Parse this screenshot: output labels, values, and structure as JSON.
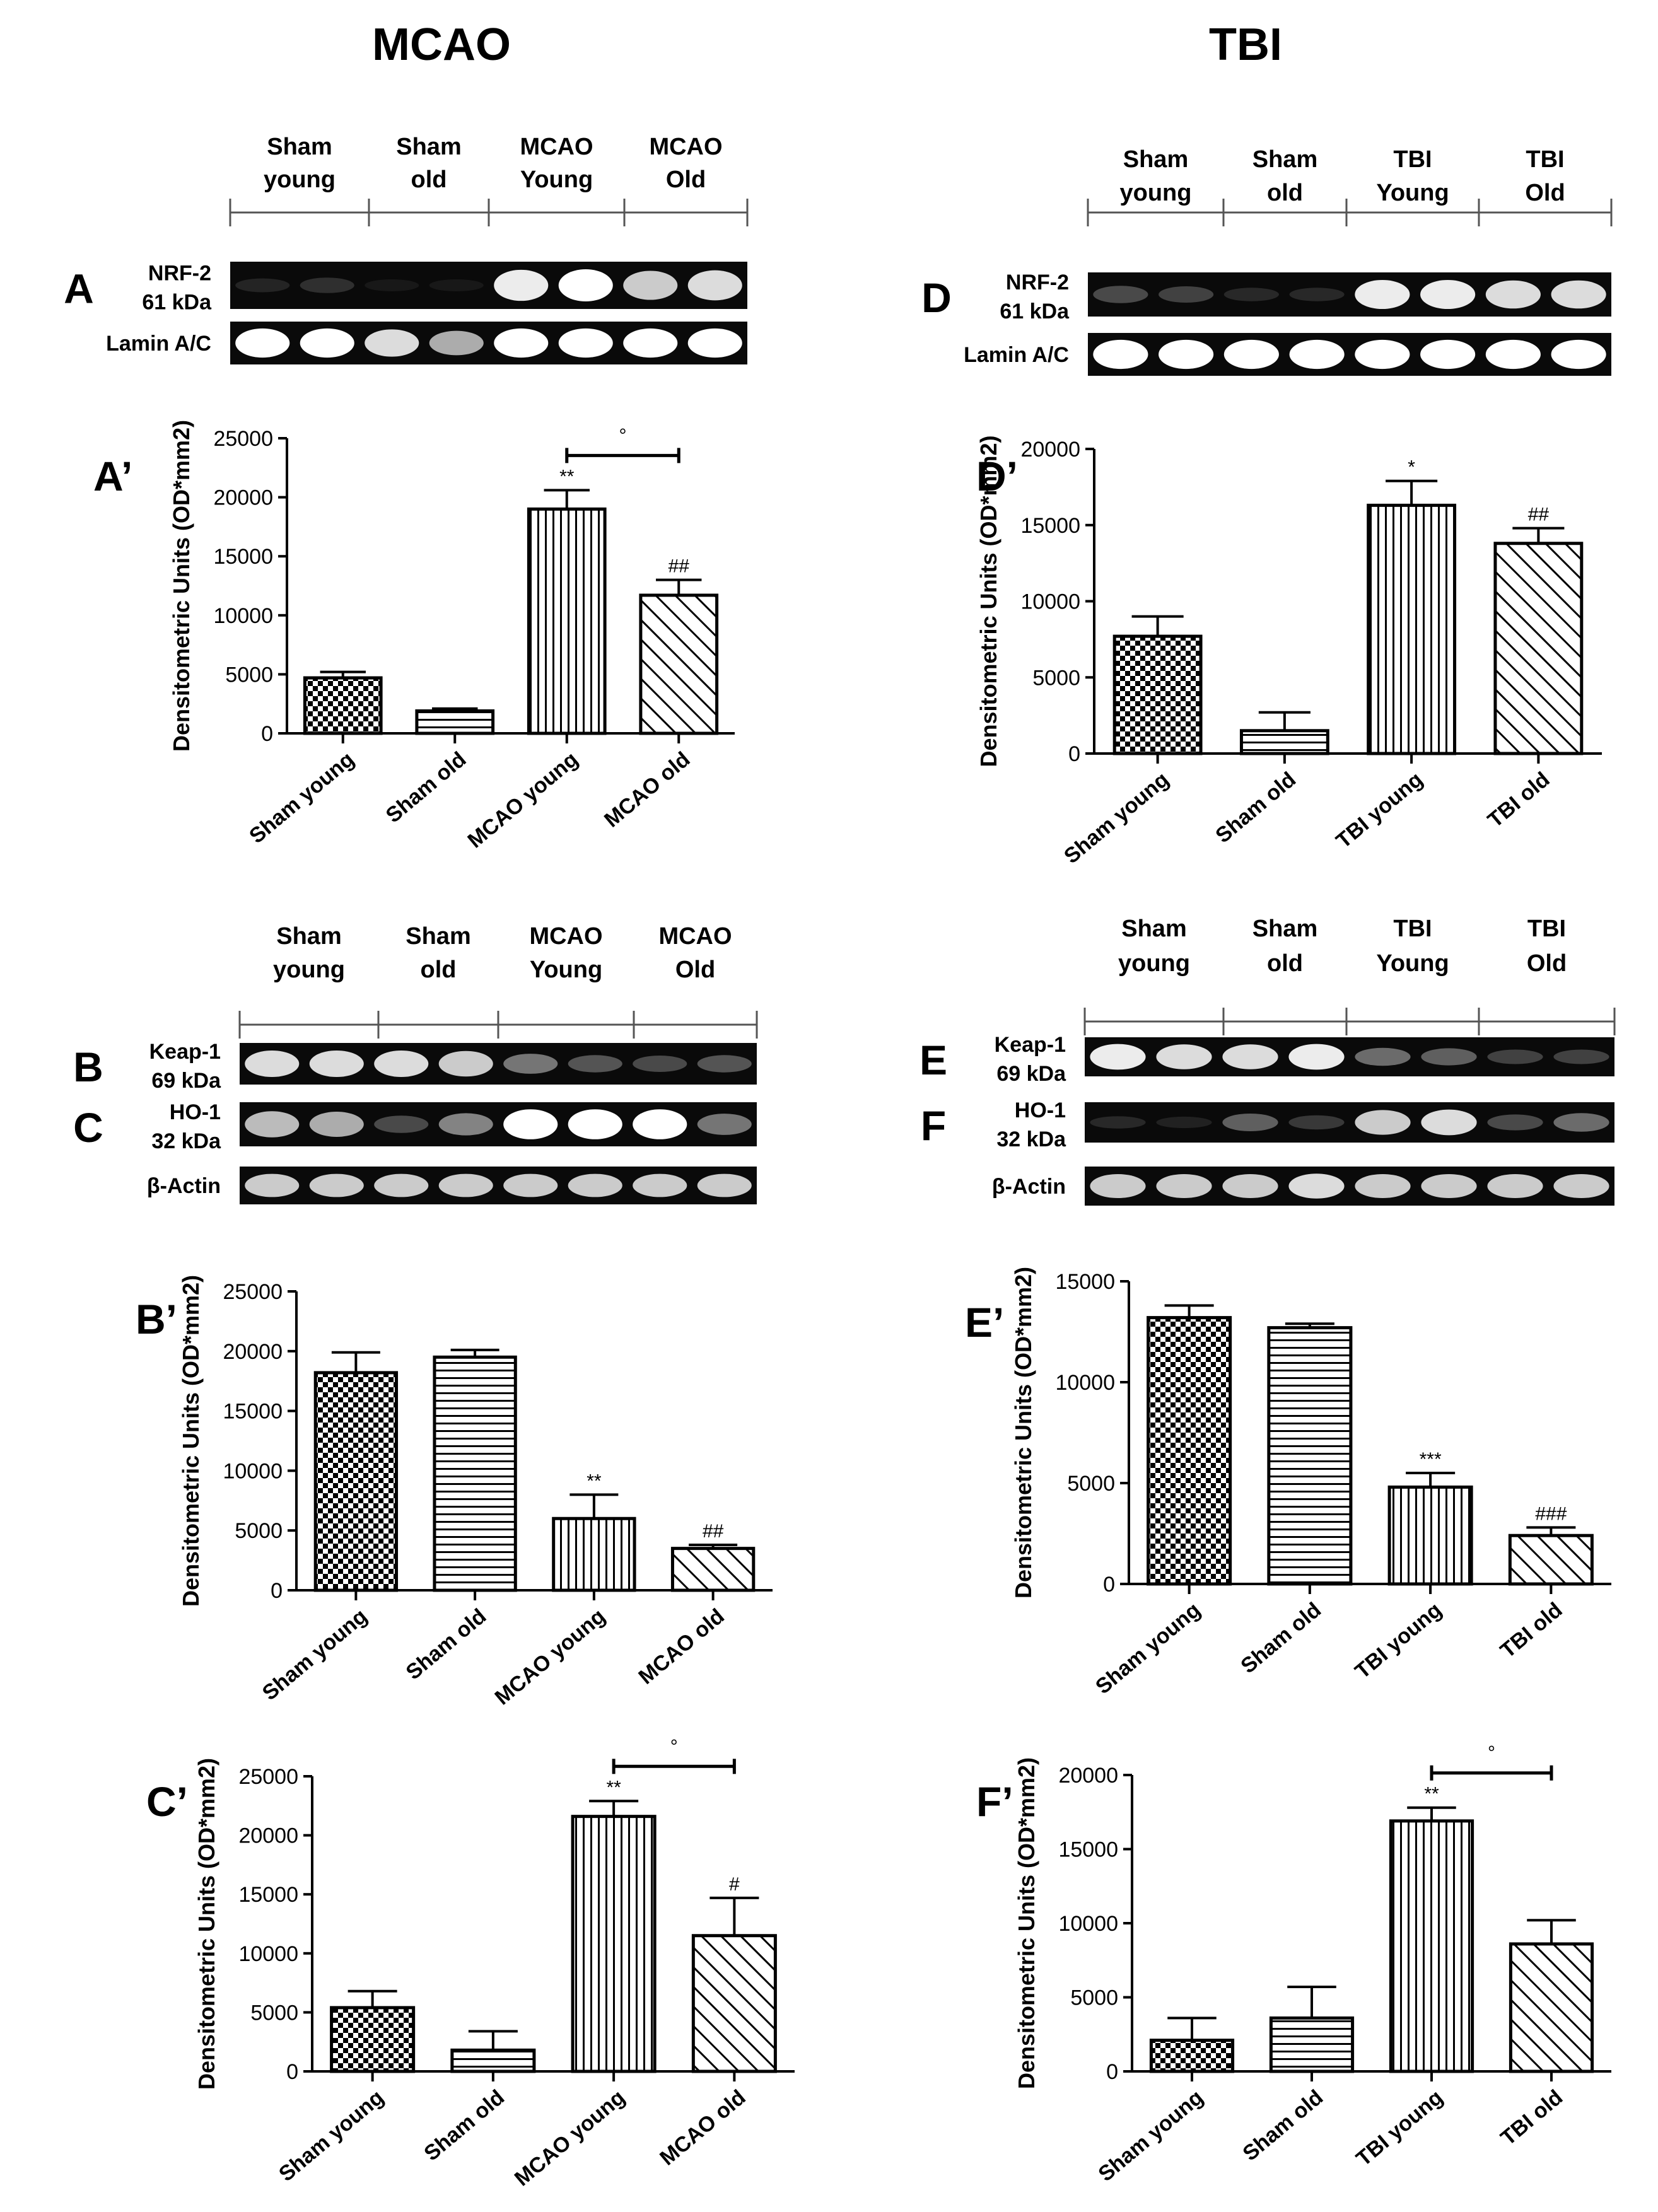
{
  "columns": [
    {
      "title": "MCAO"
    },
    {
      "title": "TBI"
    }
  ],
  "blots": [
    {
      "lane_groups": [
        {
          "line1": "Sham",
          "line2": "young"
        },
        {
          "line1": "Sham",
          "line2": "old"
        },
        {
          "line1": "MCAO",
          "line2": "Young"
        },
        {
          "line1": "MCAO",
          "line2": "Old"
        }
      ],
      "bands": [
        {
          "panel_letter": "A",
          "label_line1": "NRF-2",
          "label_line2": "61 kDa",
          "intensity": [
            0.12,
            0.2,
            0.03,
            0.03,
            0.95,
            1.0,
            0.85,
            0.9
          ]
        },
        {
          "panel_letter": "",
          "label_line1": "Lamin A/C",
          "label_line2": "",
          "intensity": [
            1.0,
            1.0,
            0.9,
            0.75,
            1.0,
            1.0,
            1.0,
            1.0
          ]
        }
      ]
    },
    {
      "lane_groups": [
        {
          "line1": "Sham",
          "line2": "young"
        },
        {
          "line1": "Sham",
          "line2": "old"
        },
        {
          "line1": "TBI",
          "line2": "Young"
        },
        {
          "line1": "TBI",
          "line2": "Old"
        }
      ],
      "bands": [
        {
          "panel_letter": "D",
          "label_line1": "NRF-2",
          "label_line2": "61 kDa",
          "intensity": [
            0.35,
            0.3,
            0.15,
            0.15,
            0.95,
            0.95,
            0.9,
            0.9
          ]
        },
        {
          "panel_letter": "",
          "label_line1": "Lamin A/C",
          "label_line2": "",
          "intensity": [
            1.0,
            1.0,
            1.0,
            1.0,
            1.0,
            1.0,
            1.0,
            1.0
          ]
        }
      ]
    },
    {
      "lane_groups": [
        {
          "line1": "Sham",
          "line2": "young"
        },
        {
          "line1": "Sham",
          "line2": "old"
        },
        {
          "line1": "MCAO",
          "line2": "Young"
        },
        {
          "line1": "MCAO",
          "line2": "Old"
        }
      ],
      "bands": [
        {
          "panel_letter": "B",
          "label_line1": "Keap-1",
          "label_line2": "69 kDa",
          "intensity": [
            0.9,
            0.9,
            0.9,
            0.85,
            0.55,
            0.4,
            0.35,
            0.4
          ]
        },
        {
          "panel_letter": "C",
          "label_line1": "HO-1",
          "label_line2": "32 kDa",
          "intensity": [
            0.8,
            0.75,
            0.35,
            0.6,
            1.0,
            1.0,
            1.0,
            0.55
          ]
        },
        {
          "panel_letter": "",
          "label_line1": "β-Actin",
          "label_line2": "",
          "intensity": [
            0.85,
            0.85,
            0.85,
            0.85,
            0.85,
            0.85,
            0.85,
            0.85
          ]
        }
      ]
    },
    {
      "lane_groups": [
        {
          "line1": "Sham",
          "line2": "young"
        },
        {
          "line1": "Sham",
          "line2": "old"
        },
        {
          "line1": "TBI",
          "line2": "Young"
        },
        {
          "line1": "TBI",
          "line2": "Old"
        }
      ],
      "bands": [
        {
          "panel_letter": "E",
          "label_line1": "Keap-1",
          "label_line2": "69 kDa",
          "intensity": [
            0.95,
            0.9,
            0.9,
            0.95,
            0.5,
            0.45,
            0.3,
            0.3
          ]
        },
        {
          "panel_letter": "F",
          "label_line1": "HO-1",
          "label_line2": "32 kDa",
          "intensity": [
            0.15,
            0.1,
            0.45,
            0.25,
            0.85,
            0.9,
            0.35,
            0.5
          ]
        },
        {
          "panel_letter": "",
          "label_line1": "β-Actin",
          "label_line2": "",
          "intensity": [
            0.85,
            0.85,
            0.85,
            0.9,
            0.85,
            0.85,
            0.85,
            0.85
          ]
        }
      ]
    }
  ],
  "chart_data": [
    {
      "type": "bar",
      "panel": "A’",
      "categories": [
        "Sham young",
        "Sham old",
        "MCAO young",
        "MCAO old"
      ],
      "values": [
        4700,
        1900,
        19000,
        11700
      ],
      "errors": [
        500,
        200,
        1600,
        1300
      ],
      "patterns": [
        "checker",
        "hlines",
        "vlines",
        "diag"
      ],
      "annotations": [
        "",
        "",
        "**",
        "##"
      ],
      "bracket": {
        "from": 2,
        "to": 3,
        "label": "°"
      },
      "ylabel": "Densitometric Units (OD*mm2)",
      "ylim": [
        0,
        25000
      ],
      "yticks": [
        0,
        5000,
        10000,
        15000,
        20000,
        25000
      ]
    },
    {
      "type": "bar",
      "panel": "D’",
      "categories": [
        "Sham young",
        "Sham old",
        "TBI young",
        "TBI old"
      ],
      "values": [
        7700,
        1500,
        16300,
        13800
      ],
      "errors": [
        1300,
        1200,
        1600,
        1000
      ],
      "patterns": [
        "checker",
        "hlines",
        "vlines",
        "diag"
      ],
      "annotations": [
        "",
        "",
        "*",
        "##"
      ],
      "bracket": null,
      "ylabel": "Densitometric Units (OD*mm2)",
      "ylim": [
        0,
        20000
      ],
      "yticks": [
        0,
        5000,
        10000,
        15000,
        20000
      ]
    },
    {
      "type": "bar",
      "panel": "B’",
      "categories": [
        "Sham young",
        "Sham old",
        "MCAO young",
        "MCAO old"
      ],
      "values": [
        18200,
        19500,
        6000,
        3500
      ],
      "errors": [
        1700,
        600,
        2000,
        300
      ],
      "patterns": [
        "checker",
        "hlines",
        "vlines",
        "diag"
      ],
      "annotations": [
        "",
        "",
        "**",
        "##"
      ],
      "bracket": null,
      "ylabel": "Densitometric Units (OD*mm2)",
      "ylim": [
        0,
        25000
      ],
      "yticks": [
        0,
        5000,
        10000,
        15000,
        20000,
        25000
      ]
    },
    {
      "type": "bar",
      "panel": "E’",
      "categories": [
        "Sham young",
        "Sham old",
        "TBI young",
        "TBI old"
      ],
      "values": [
        13200,
        12700,
        4800,
        2400
      ],
      "errors": [
        600,
        200,
        700,
        400
      ],
      "patterns": [
        "checker",
        "hlines",
        "vlines",
        "diag"
      ],
      "annotations": [
        "",
        "",
        "***",
        "###"
      ],
      "bracket": null,
      "ylabel": "Densitometric Units (OD*mm2)",
      "ylim": [
        0,
        15000
      ],
      "yticks": [
        0,
        5000,
        10000,
        15000
      ]
    },
    {
      "type": "bar",
      "panel": "C’",
      "categories": [
        "Sham young",
        "Sham old",
        "MCAO young",
        "MCAO old"
      ],
      "values": [
        5400,
        1800,
        21600,
        11500
      ],
      "errors": [
        1400,
        1600,
        1300,
        3200
      ],
      "patterns": [
        "checker",
        "hlines",
        "vlines",
        "diag"
      ],
      "annotations": [
        "",
        "",
        "**",
        "#"
      ],
      "bracket": {
        "from": 2,
        "to": 3,
        "label": "°"
      },
      "ylabel": "Densitometric Units (OD*mm2)",
      "ylim": [
        0,
        25000
      ],
      "yticks": [
        0,
        5000,
        10000,
        15000,
        20000,
        25000
      ]
    },
    {
      "type": "bar",
      "panel": "F’",
      "categories": [
        "Sham young",
        "Sham old",
        "TBI young",
        "TBI old"
      ],
      "values": [
        2100,
        3600,
        16900,
        8600
      ],
      "errors": [
        1500,
        2100,
        900,
        1600
      ],
      "patterns": [
        "checker",
        "hlines",
        "vlines",
        "diag"
      ],
      "annotations": [
        "",
        "",
        "**",
        ""
      ],
      "bracket": {
        "from": 2,
        "to": 3,
        "label": "°"
      },
      "ylabel": "Densitometric Units (OD*mm2)",
      "ylim": [
        0,
        20000
      ],
      "yticks": [
        0,
        5000,
        10000,
        15000,
        20000
      ]
    }
  ]
}
